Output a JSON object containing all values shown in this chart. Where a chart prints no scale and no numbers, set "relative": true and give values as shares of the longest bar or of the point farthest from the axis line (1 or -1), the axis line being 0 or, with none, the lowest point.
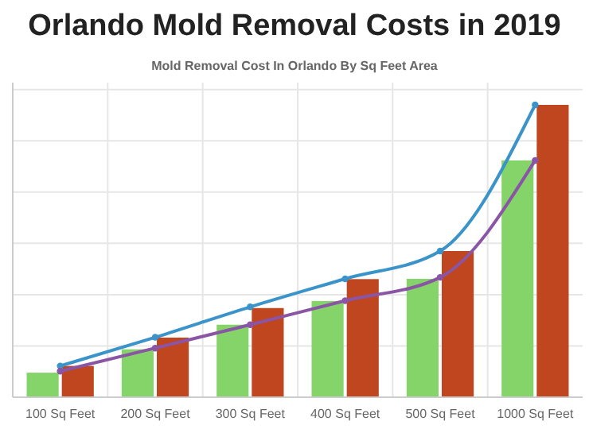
{
  "chart_data": {
    "type": "bar",
    "title": "Orlando Mold Removal Costs in 2019",
    "subtitle": "Mold Removal Cost In Orlando By Sq Feet Area",
    "categories": [
      "100 Sq Feet",
      "200 Sq Feet",
      "300 Sq Feet",
      "400 Sq Feet",
      "500 Sq Feet",
      "1000 Sq Feet"
    ],
    "relative": true,
    "grid": true,
    "marker": "circle",
    "line_style": "solid",
    "series": [
      {
        "color": "#85d46a",
        "values": [
          0.084,
          0.164,
          0.248,
          0.329,
          0.405,
          0.81
        ]
      },
      {
        "color": "#c0461f",
        "values": [
          0.107,
          0.204,
          0.305,
          0.404,
          0.5,
          1
        ]
      },
      {
        "type": "line",
        "color": "#3a93c9",
        "values": [
          0.107,
          0.205,
          0.309,
          0.405,
          0.5,
          1
        ]
      },
      {
        "type": "line",
        "color": "#8a55a5",
        "values": [
          0.089,
          0.168,
          0.248,
          0.33,
          0.41,
          0.81
        ]
      }
    ]
  }
}
